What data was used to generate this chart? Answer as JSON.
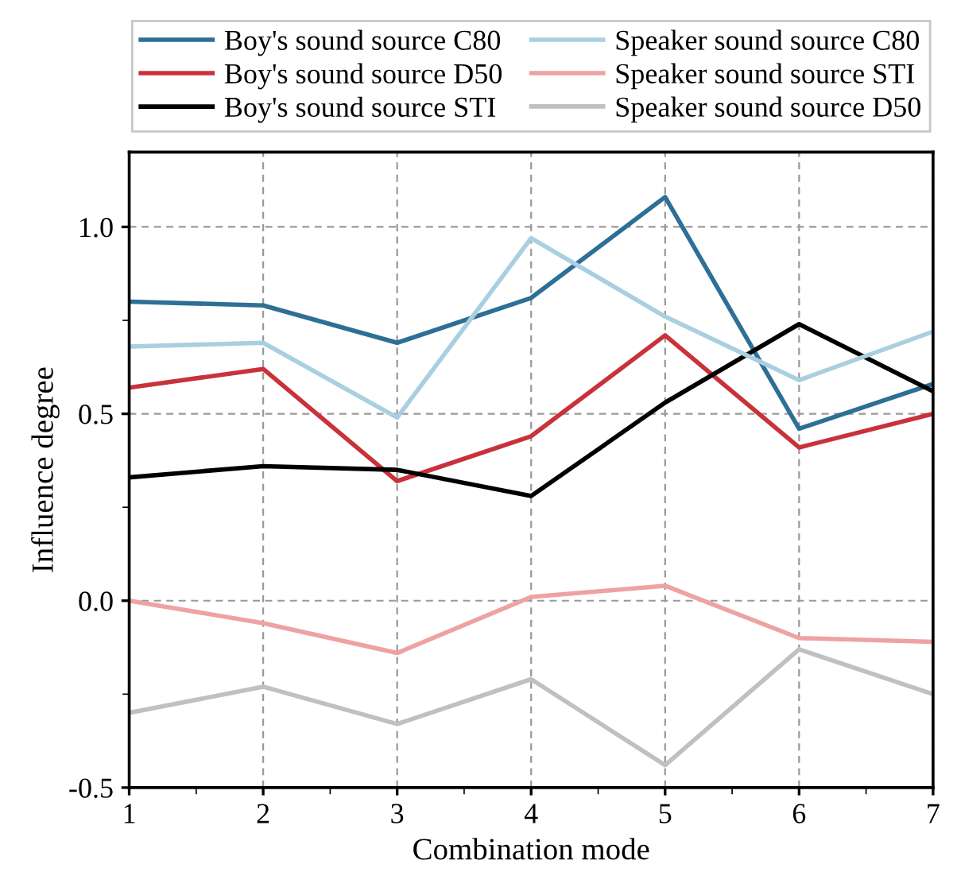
{
  "chart_data": {
    "type": "line",
    "xlabel": "Combination mode",
    "ylabel": "Influence degree",
    "x": [
      1,
      2,
      3,
      4,
      5,
      6,
      7
    ],
    "series": [
      {
        "name": "Boy's sound source C80",
        "color": "#2e6f96",
        "values": [
          0.8,
          0.79,
          0.69,
          0.81,
          1.08,
          0.46,
          0.58
        ]
      },
      {
        "name": "Boy's sound source D50",
        "color": "#c8323a",
        "values": [
          0.57,
          0.62,
          0.32,
          0.44,
          0.71,
          0.41,
          0.5
        ]
      },
      {
        "name": "Boy's sound source STI",
        "color": "#000000",
        "values": [
          0.33,
          0.36,
          0.35,
          0.28,
          0.53,
          0.74,
          0.56
        ]
      },
      {
        "name": "Speaker sound source C80",
        "color": "#a9cfe0",
        "values": [
          0.68,
          0.69,
          0.49,
          0.97,
          0.76,
          0.59,
          0.72
        ]
      },
      {
        "name": "Speaker sound source STI",
        "color": "#eea2a2",
        "values": [
          0.0,
          -0.06,
          -0.14,
          0.01,
          0.04,
          -0.1,
          -0.11
        ]
      },
      {
        "name": "Speaker sound source D50",
        "color": "#c0c0c0",
        "values": [
          -0.3,
          -0.23,
          -0.33,
          -0.21,
          -0.44,
          -0.13,
          -0.25
        ]
      }
    ],
    "xlim": [
      1,
      7
    ],
    "xticks": [
      1,
      2,
      3,
      4,
      5,
      6,
      7
    ],
    "ylim": [
      -0.5,
      1.2
    ],
    "yticks": [
      {
        "value": -0.5,
        "label": "-0.5"
      },
      {
        "value": 0,
        "label": "0.0"
      },
      {
        "value": 0.5,
        "label": "0.5"
      },
      {
        "value": 1.0,
        "label": "1.0"
      }
    ],
    "grid": true,
    "legend": "top",
    "marker": "none",
    "line_style": "solid"
  }
}
